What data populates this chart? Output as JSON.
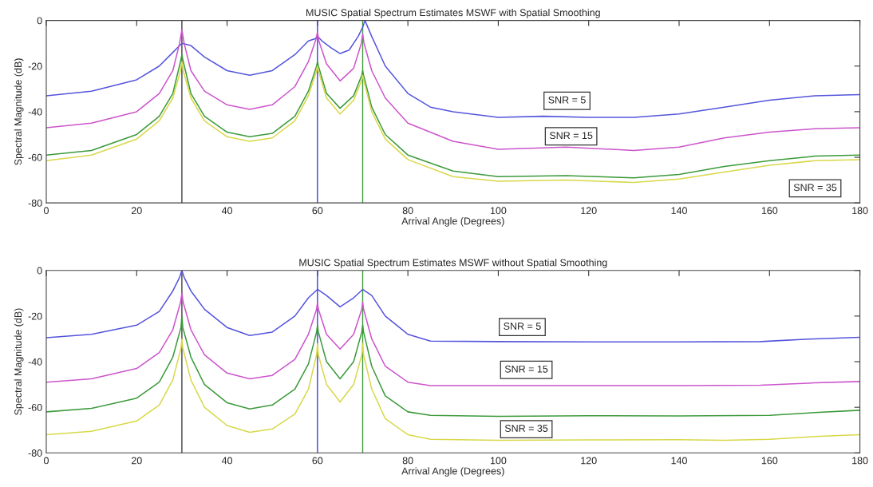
{
  "chart_data": [
    {
      "type": "line",
      "title": "MUSIC Spatial Spectrum Estimates MSWF with Spatial Smoothing",
      "xlabel": "Arrival Angle (Degrees)",
      "ylabel": "Spectral Magnitude (dB)",
      "xlim": [
        0,
        180
      ],
      "ylim": [
        -80,
        0
      ],
      "xticks": [
        0,
        20,
        40,
        60,
        80,
        100,
        120,
        140,
        160,
        180
      ],
      "yticks": [
        -80,
        -60,
        -40,
        -20,
        0
      ],
      "grid": false,
      "legend": false,
      "line_style": "solid",
      "marker": "none",
      "series": [
        {
          "color": "#5555dd",
          "x": [
            0,
            10,
            20,
            25,
            28,
            30,
            32,
            35,
            40,
            45,
            50,
            55,
            58,
            59.5,
            60,
            61,
            63,
            65,
            67,
            69,
            70,
            70.5,
            72,
            75,
            80,
            85,
            90,
            100,
            110,
            120,
            130,
            140,
            150,
            160,
            170,
            180
          ],
          "values": [
            -33,
            -31,
            -26,
            -20,
            -14,
            -10,
            -11,
            -16,
            -22,
            -24,
            -22,
            -15,
            -9,
            -8,
            -7,
            -9,
            -12,
            -14.5,
            -13,
            -7,
            -3,
            0,
            -7,
            -20,
            -32,
            -38,
            -40,
            -42.5,
            -42,
            -42.5,
            -42.5,
            -41,
            -38,
            -35,
            -33,
            -32.5
          ]
        },
        {
          "color": "#cc55cc",
          "x": [
            0,
            10,
            20,
            25,
            28,
            29.5,
            30,
            30.5,
            32,
            35,
            40,
            45,
            50,
            55,
            58,
            59.7,
            60,
            60.3,
            62,
            65,
            68,
            69.7,
            70,
            70.3,
            72,
            75,
            80,
            90,
            100,
            115,
            130,
            140,
            150,
            160,
            170,
            180
          ],
          "values": [
            -47,
            -45,
            -40,
            -32,
            -22,
            -10,
            -4,
            -10,
            -22,
            -31,
            -37,
            -39,
            -37,
            -29,
            -18,
            -8,
            -5,
            -9,
            -19,
            -26.5,
            -21,
            -10,
            -6,
            -10,
            -22,
            -34,
            -45,
            -53,
            -56.5,
            -55.5,
            -57,
            -55.5,
            -51.5,
            -49,
            -47.5,
            -47
          ]
        },
        {
          "color": "#3c9a3c",
          "x": [
            0,
            10,
            20,
            25,
            28,
            29.7,
            30,
            30.3,
            32,
            35,
            40,
            45,
            50,
            55,
            58,
            59.8,
            60,
            60.2,
            62,
            65,
            68,
            69.8,
            70,
            70.2,
            72,
            75,
            80,
            90,
            100,
            115,
            130,
            140,
            150,
            160,
            170,
            180
          ],
          "values": [
            -59,
            -57,
            -50,
            -42,
            -32,
            -18,
            -15,
            -18,
            -32,
            -42,
            -49,
            -51,
            -49.5,
            -42,
            -31,
            -20,
            -18,
            -20,
            -32,
            -38.5,
            -33,
            -24,
            -22,
            -24,
            -38,
            -50,
            -59,
            -66,
            -68.5,
            -68,
            -69,
            -67.5,
            -64,
            -61.5,
            -59.5,
            -59
          ]
        },
        {
          "color": "#d8d84a",
          "x": [
            0,
            10,
            20,
            25,
            28,
            29.7,
            30,
            30.3,
            32,
            35,
            40,
            45,
            50,
            55,
            58,
            59.8,
            60,
            60.2,
            62,
            65,
            68,
            69.8,
            70,
            70.2,
            72,
            75,
            80,
            90,
            100,
            115,
            130,
            140,
            150,
            160,
            170,
            180
          ],
          "values": [
            -61.5,
            -59,
            -52,
            -44,
            -34,
            -22,
            -18,
            -22,
            -34,
            -44,
            -51,
            -53,
            -51.5,
            -44,
            -33,
            -22,
            -20,
            -22,
            -34,
            -41,
            -35,
            -26,
            -24,
            -26,
            -40,
            -52,
            -61,
            -68.5,
            -70.5,
            -70,
            -71,
            -69.5,
            -66.5,
            -63.5,
            -61.5,
            -61
          ]
        }
      ],
      "ref_lines": [
        {
          "axis": "x",
          "value": 30,
          "color": "#404040"
        },
        {
          "axis": "x",
          "value": 60,
          "color": "#3c3cd8"
        },
        {
          "axis": "x",
          "value": 70,
          "color": "#3c9a3c"
        }
      ],
      "annotations": [
        "SNR = 5",
        "SNR = 15",
        "SNR = 35"
      ]
    },
    {
      "type": "line",
      "title": "MUSIC Spatial Spectrum Estimates MSWF without Spatial Smoothing",
      "xlabel": "Arrival Angle (Degrees)",
      "ylabel": "Spectral Magnitude (dB)",
      "xlim": [
        0,
        180
      ],
      "ylim": [
        -80,
        0
      ],
      "xticks": [
        0,
        20,
        40,
        60,
        80,
        100,
        120,
        140,
        160,
        180
      ],
      "yticks": [
        -80,
        -60,
        -40,
        -20,
        0
      ],
      "grid": false,
      "legend": false,
      "line_style": "solid",
      "marker": "none",
      "series": [
        {
          "color": "#5555dd",
          "x": [
            0,
            10,
            20,
            25,
            28,
            29.5,
            30,
            30.5,
            32,
            35,
            40,
            45,
            50,
            55,
            58,
            60,
            62,
            65,
            68,
            70,
            72,
            75,
            80,
            85,
            100,
            120,
            140,
            158,
            170,
            180
          ],
          "values": [
            -29.5,
            -28,
            -24,
            -18,
            -9,
            -3,
            0,
            -3,
            -9,
            -17,
            -25,
            -28.5,
            -27,
            -20,
            -12,
            -8.3,
            -11,
            -16,
            -12,
            -8.3,
            -11,
            -20,
            -28,
            -31,
            -31.2,
            -31.3,
            -31.3,
            -31.2,
            -30,
            -29.3
          ]
        },
        {
          "color": "#cc55cc",
          "x": [
            0,
            10,
            20,
            25,
            28,
            29.7,
            30,
            30.3,
            32,
            35,
            40,
            45,
            50,
            55,
            58,
            59.8,
            60,
            60.2,
            62,
            65,
            68,
            69.8,
            70,
            70.2,
            72,
            75,
            80,
            85,
            100,
            120,
            140,
            158,
            170,
            180
          ],
          "values": [
            -49,
            -47.5,
            -43,
            -36,
            -26,
            -14,
            -10,
            -14,
            -26,
            -37,
            -45,
            -47.5,
            -46,
            -39,
            -28,
            -17,
            -14,
            -17,
            -28,
            -34.5,
            -28,
            -17,
            -14,
            -17,
            -30,
            -42,
            -49,
            -50.5,
            -50.5,
            -50.5,
            -50.5,
            -50.3,
            -49.3,
            -48.7
          ]
        },
        {
          "color": "#3c9a3c",
          "x": [
            0,
            10,
            20,
            25,
            28,
            29.8,
            30,
            30.2,
            32,
            35,
            40,
            45,
            50,
            55,
            58,
            59.8,
            60,
            60.2,
            62,
            65,
            68,
            69.8,
            70,
            70.2,
            72,
            75,
            80,
            85,
            100,
            120,
            140,
            160,
            170,
            180
          ],
          "values": [
            -62,
            -60.5,
            -56,
            -49,
            -38,
            -25,
            -20,
            -25,
            -38,
            -50,
            -58,
            -60.7,
            -59,
            -52,
            -41,
            -27,
            -24,
            -27,
            -40,
            -47.5,
            -40,
            -27,
            -24,
            -27,
            -42,
            -55,
            -62,
            -63.5,
            -64,
            -63.7,
            -63.8,
            -63.5,
            -62.3,
            -61.3
          ]
        },
        {
          "color": "#d8d84a",
          "x": [
            0,
            10,
            20,
            25,
            28,
            29.8,
            30,
            30.2,
            32,
            35,
            40,
            45,
            50,
            55,
            58,
            59.8,
            60,
            60.2,
            62,
            65,
            68,
            69.8,
            70,
            70.2,
            72,
            75,
            80,
            85,
            100,
            120,
            140,
            150,
            160,
            170,
            180
          ],
          "values": [
            -72,
            -70.5,
            -66,
            -59,
            -48,
            -34,
            -30,
            -34,
            -48,
            -60,
            -68,
            -71,
            -69.5,
            -63,
            -52,
            -37,
            -32,
            -37,
            -50,
            -57.7,
            -50,
            -37,
            -32,
            -37,
            -52,
            -65,
            -72,
            -74,
            -74.5,
            -74.3,
            -74.2,
            -74.5,
            -74,
            -72.8,
            -72
          ]
        }
      ],
      "ref_lines": [
        {
          "axis": "x",
          "value": 30,
          "color": "#404040"
        },
        {
          "axis": "x",
          "value": 60,
          "color": "#3c3cd8"
        },
        {
          "axis": "x",
          "value": 70,
          "color": "#3c9a3c"
        }
      ],
      "annotations": [
        "SNR = 5",
        "SNR = 15",
        "SNR = 35"
      ]
    }
  ]
}
